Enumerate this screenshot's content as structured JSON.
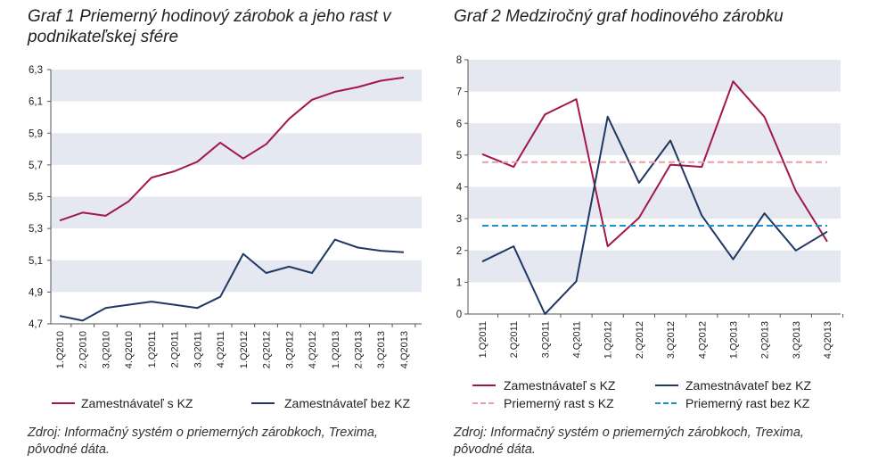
{
  "chart_data": [
    {
      "type": "line",
      "title": "Graf 1 Priemerný hodinový zárobok a jeho rast v podnikateľskej sfére",
      "categories": [
        "1.Q2010",
        "2.Q2010",
        "3.Q2010",
        "4.Q2010",
        "1.Q2011",
        "2.Q2011",
        "3.Q2011",
        "4.Q2011",
        "1.Q2012",
        "2.Q2012",
        "3.Q2012",
        "4.Q2012",
        "1.Q2013",
        "2.Q2013",
        "3.Q2013",
        "4.Q2013"
      ],
      "yticks": [
        "4,7",
        "4,9",
        "5,1",
        "5,3",
        "5,5",
        "5,7",
        "5,9",
        "6,1",
        "6,3"
      ],
      "ylim": [
        4.7,
        6.3
      ],
      "grid": "alternating horizontal bands",
      "legend": "bottom",
      "series": [
        {
          "name": "Zamestnávateľ s KZ",
          "color": "#a3174a",
          "values": [
            5.35,
            5.4,
            5.38,
            5.47,
            5.62,
            5.66,
            5.72,
            5.84,
            5.74,
            5.83,
            5.99,
            6.11,
            6.16,
            6.19,
            6.23,
            6.25
          ]
        },
        {
          "name": "Zamestnávateľ bez KZ",
          "color": "#1f3864",
          "values": [
            4.75,
            4.72,
            4.8,
            4.82,
            4.84,
            4.82,
            4.8,
            4.87,
            5.14,
            5.02,
            5.06,
            5.02,
            5.23,
            5.18,
            5.16,
            5.15
          ]
        }
      ]
    },
    {
      "type": "line",
      "title": "Graf 2 Medziročný graf hodinového zárobku",
      "categories": [
        "1.Q2011",
        "2.Q2011",
        "3.Q2011",
        "4.Q2011",
        "1.Q2012",
        "2.Q2012",
        "3.Q2012",
        "4.Q2012",
        "1.Q2013",
        "2.Q2013",
        "3.Q2013",
        "4.Q2013"
      ],
      "yticks": [
        "0",
        "1",
        "2",
        "3",
        "4",
        "5",
        "6",
        "7",
        "8"
      ],
      "ylim": [
        0,
        8
      ],
      "grid": "alternating horizontal bands",
      "legend": "bottom",
      "series": [
        {
          "name": "Zamestnávateľ s KZ",
          "color": "#a3174a",
          "dash": "solid",
          "values": [
            5.03,
            4.63,
            6.28,
            6.76,
            2.13,
            3.03,
            4.7,
            4.63,
            7.32,
            6.2,
            3.87,
            2.28
          ]
        },
        {
          "name": "Zamestnávateľ bez KZ",
          "color": "#1f3864",
          "dash": "solid",
          "values": [
            1.65,
            2.13,
            0.0,
            1.03,
            6.21,
            4.13,
            5.46,
            3.1,
            1.72,
            3.17,
            2.0,
            2.59
          ]
        },
        {
          "name": "Priemerný rast s KZ",
          "color": "#e8a0a4",
          "dash": "dashed",
          "values": [
            4.78,
            4.78,
            4.78,
            4.78,
            4.78,
            4.78,
            4.78,
            4.78,
            4.78,
            4.78,
            4.78,
            4.78
          ]
        },
        {
          "name": "Priemerný rast bez KZ",
          "color": "#1e90d0",
          "dash": "dashed",
          "values": [
            2.78,
            2.78,
            2.78,
            2.78,
            2.78,
            2.78,
            2.78,
            2.78,
            2.78,
            2.78,
            2.78,
            2.78
          ]
        }
      ]
    }
  ],
  "source1": "Zdroj: Informačný systém o priemerných zárobkoch, Trexima, pôvodné dáta.",
  "source2": "Zdroj: Informačný systém o priemerných zárobkoch, Trexima, pôvodné dáta.",
  "colors": {
    "band": "#e5e8f1",
    "axis": "#555555"
  }
}
